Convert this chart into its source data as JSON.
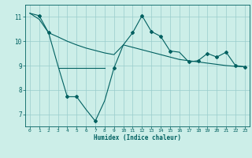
{
  "title": "",
  "xlabel": "Humidex (Indice chaleur)",
  "background_color": "#cceee8",
  "line_color": "#006060",
  "grid_color": "#99cccc",
  "xlim": [
    -0.5,
    23.5
  ],
  "ylim": [
    6.5,
    11.5
  ],
  "xticks": [
    0,
    1,
    2,
    3,
    4,
    5,
    6,
    7,
    8,
    9,
    10,
    11,
    12,
    13,
    14,
    15,
    16,
    17,
    18,
    19,
    20,
    21,
    22,
    23
  ],
  "yticks": [
    7,
    8,
    9,
    10,
    11
  ],
  "line1_x": [
    0,
    1,
    2,
    3,
    4,
    5,
    6,
    7,
    8,
    9,
    10,
    11,
    12,
    13,
    14,
    15,
    16,
    17,
    18,
    19,
    20,
    21,
    22,
    23
  ],
  "line1_y": [
    11.15,
    11.05,
    10.35,
    9.0,
    7.72,
    7.72,
    7.2,
    6.72,
    7.55,
    8.9,
    9.85,
    10.35,
    11.05,
    10.4,
    10.2,
    9.6,
    9.55,
    9.15,
    9.2,
    9.5,
    9.35,
    9.55,
    9.0,
    8.95
  ],
  "line2_x": [
    0,
    1,
    2,
    3,
    4,
    5,
    6,
    7,
    8,
    9,
    10,
    11,
    12,
    13,
    14,
    15,
    16,
    17,
    18,
    19,
    20,
    21,
    22,
    23
  ],
  "line2_y": [
    11.15,
    10.9,
    10.35,
    10.18,
    10.0,
    9.85,
    9.72,
    9.62,
    9.52,
    9.45,
    9.85,
    9.75,
    9.65,
    9.55,
    9.45,
    9.35,
    9.25,
    9.2,
    9.15,
    9.1,
    9.05,
    9.0,
    8.97,
    8.95
  ],
  "line3_x": [
    3,
    8
  ],
  "line3_y": [
    8.9,
    8.9
  ]
}
